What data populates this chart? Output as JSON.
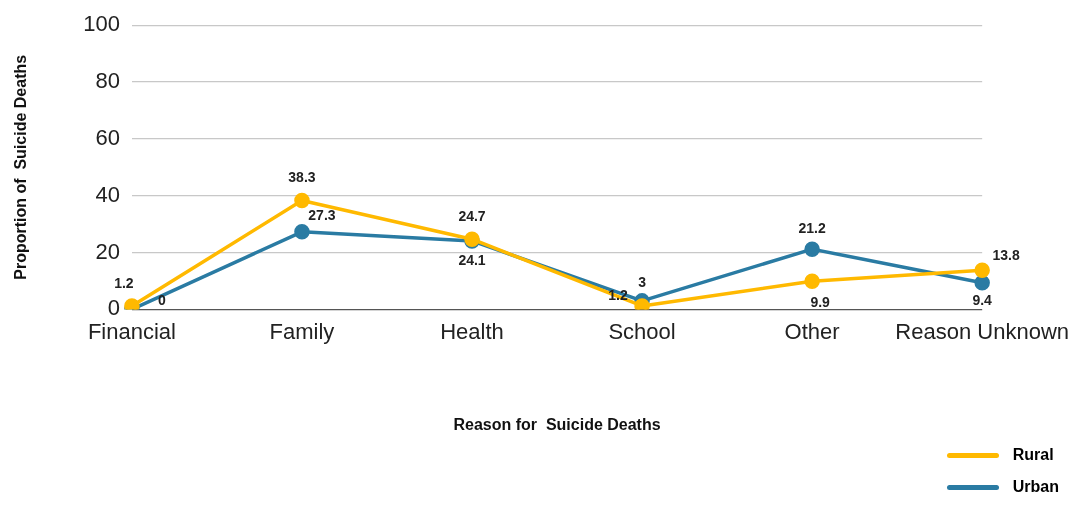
{
  "chart_data": {
    "type": "line",
    "xlabel": "Reason for  Suicide Deaths",
    "ylabel": "Proportion of  Suicide Deaths",
    "categories": [
      "Financial",
      "Family",
      "Health",
      "School",
      "Other",
      "Reason Unknown"
    ],
    "series": [
      {
        "name": "Rural",
        "color": "#ffb900",
        "values": [
          1.2,
          38.3,
          24.7,
          1.2,
          9.9,
          13.8
        ]
      },
      {
        "name": "Urban",
        "color": "#2a7ba3",
        "values": [
          0,
          27.3,
          24.1,
          3,
          21.2,
          9.4
        ]
      }
    ],
    "ylim": [
      0,
      100
    ],
    "yticks": [
      0,
      20,
      40,
      60,
      80,
      100
    ],
    "grid": "y",
    "legend": "bottom right",
    "marker": "circle",
    "line_style": "solid",
    "data_labels": true
  }
}
